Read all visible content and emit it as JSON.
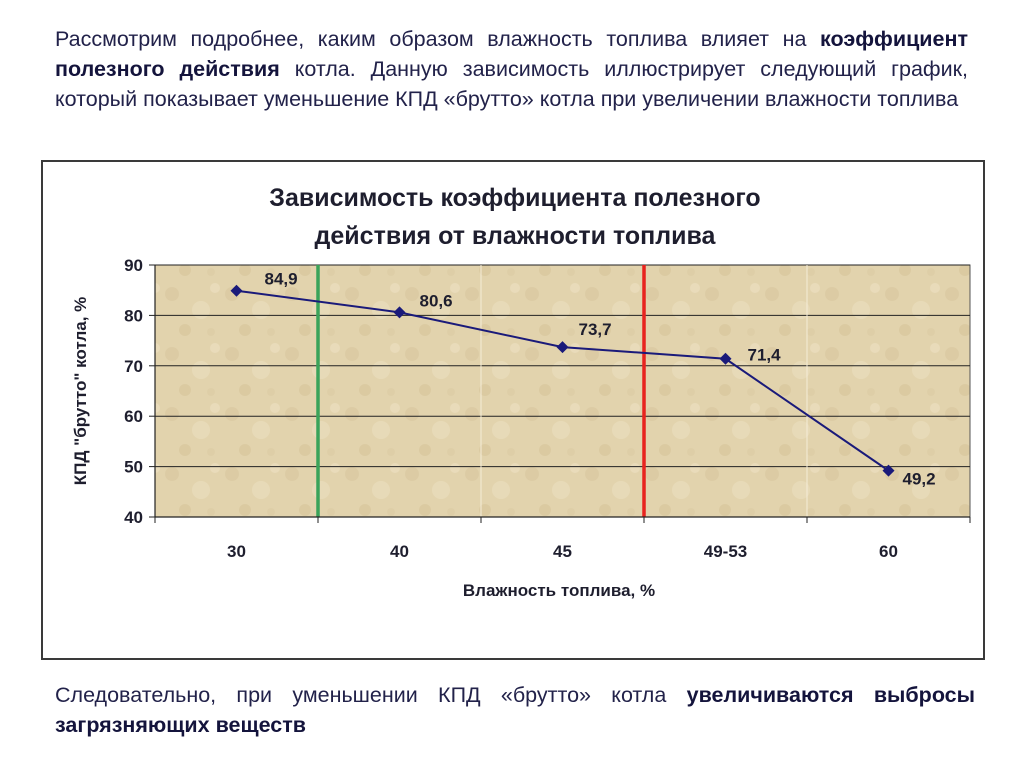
{
  "intro": {
    "part1": "Рассмотрим подробнее, каким образом влажность топлива влияет на ",
    "bold": "коэффициент полезного действия",
    "part2": " котла. Данную зависимость иллюстрирует следующий график, который показывает уменьшение КПД «брутто» котла при увеличении влажности топлива"
  },
  "conclusion": {
    "part1": "Следовательно, при уменьшении КПД «брутто» котла ",
    "bold_a": "увеличиваются",
    "bold_b": "выбросы загрязняющих веществ"
  },
  "chart_data": {
    "type": "line",
    "title_line1": "Зависимость коэффициента полезного",
    "title_line2": "действия от влажности топлива",
    "xlabel": "Влажность топлива, %",
    "ylabel": "КПД \"брутто\" котла, %",
    "categories": [
      "30",
      "40",
      "45",
      "49-53",
      "60"
    ],
    "values": [
      84.9,
      80.6,
      73.7,
      71.4,
      49.2
    ],
    "data_labels": [
      "84,9",
      "80,6",
      "73,7",
      "71,4",
      "49,2"
    ],
    "ylim": [
      40,
      90
    ],
    "yticks": [
      40,
      50,
      60,
      70,
      80,
      90
    ],
    "grid": true,
    "legend": "none",
    "series_color": "#1a1a7a",
    "vertical_markers": [
      {
        "position": "category-boundary-1-2",
        "color": "#3aa35a"
      },
      {
        "position": "category-boundary-3-4",
        "color": "#e8231e"
      }
    ]
  }
}
